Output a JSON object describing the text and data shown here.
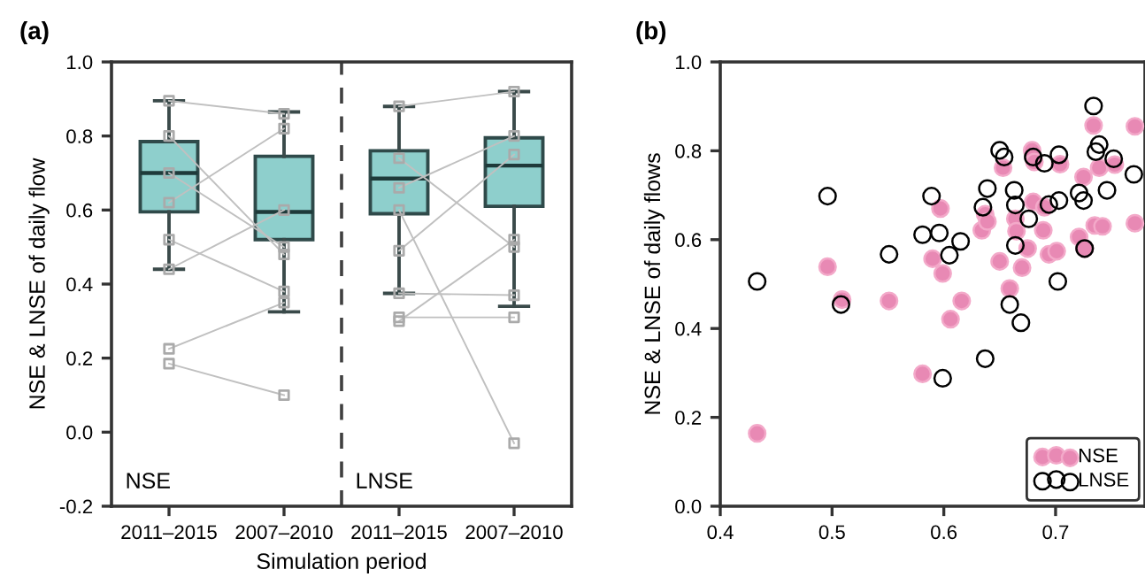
{
  "chart_data": [
    {
      "type": "box",
      "title": "(a)",
      "xlabel": "Simulation period",
      "ylabel": "NSE & LNSE of daily flow",
      "categories": [
        "2011–2015",
        "2007–2010",
        "2011–2015",
        "2007–2010"
      ],
      "color": "#8ecfcc",
      "boxes": [
        {
          "low": 0.44,
          "q1": 0.595,
          "median": 0.7,
          "q3": 0.785,
          "high": 0.895
        },
        {
          "low": 0.325,
          "q1": 0.52,
          "median": 0.595,
          "q3": 0.745,
          "high": 0.865
        },
        {
          "low": 0.375,
          "q1": 0.59,
          "median": 0.685,
          "q3": 0.76,
          "high": 0.88
        },
        {
          "low": 0.34,
          "q1": 0.61,
          "median": 0.72,
          "q3": 0.795,
          "high": 0.92
        }
      ],
      "series": [
        {
          "type": "line",
          "color": "#c0c0c0",
          "values": [
            0.225,
            0.35,
            null,
            null
          ]
        },
        {
          "type": "line",
          "color": "#c0c0c0",
          "values": [
            0.185,
            0.1,
            null,
            null
          ]
        },
        {
          "type": "line",
          "color": "#c0c0c0",
          "values": [
            0.895,
            0.86,
            null,
            null
          ]
        },
        {
          "type": "line",
          "color": "#c0c0c0",
          "values": [
            0.44,
            0.6,
            null,
            null
          ]
        },
        {
          "type": "line",
          "color": "#c0c0c0",
          "values": [
            0.52,
            0.38,
            null,
            null
          ]
        },
        {
          "type": "line",
          "color": "#c0c0c0",
          "values": [
            0.8,
            0.48,
            null,
            null
          ]
        },
        {
          "type": "line",
          "color": "#c0c0c0",
          "values": [
            0.62,
            0.82,
            null,
            null
          ]
        },
        {
          "type": "line",
          "color": "#c0c0c0",
          "values": [
            0.7,
            0.5,
            null,
            null
          ]
        },
        {
          "type": "line",
          "color": "#c0c0c0",
          "values": [
            null,
            null,
            0.6,
            -0.03
          ]
        },
        {
          "type": "line",
          "color": "#c0c0c0",
          "values": [
            null,
            null,
            0.31,
            0.31
          ]
        },
        {
          "type": "line",
          "color": "#c0c0c0",
          "values": [
            null,
            null,
            0.3,
            0.52
          ]
        },
        {
          "type": "line",
          "color": "#c0c0c0",
          "values": [
            null,
            null,
            0.88,
            0.92
          ]
        },
        {
          "type": "line",
          "color": "#c0c0c0",
          "values": [
            null,
            null,
            0.375,
            0.37
          ]
        },
        {
          "type": "line",
          "color": "#c0c0c0",
          "values": [
            null,
            null,
            0.49,
            0.75
          ]
        },
        {
          "type": "line",
          "color": "#c0c0c0",
          "values": [
            null,
            null,
            0.74,
            0.5
          ]
        },
        {
          "type": "line",
          "color": "#c0c0c0",
          "values": [
            null,
            null,
            0.66,
            0.8
          ]
        }
      ],
      "marker": "square",
      "ylim": [
        -0.2,
        1.0
      ],
      "yticks": [
        {
          "value": -0.2,
          "label": "-0.2"
        },
        {
          "value": 0.0,
          "label": "0.0"
        },
        0.2,
        0.4,
        0.6,
        0.8,
        {
          "value": 1.0,
          "label": "1.0"
        }
      ],
      "annotations": [
        "NSE",
        "LNSE"
      ],
      "grid": false
    },
    {
      "type": "scatter",
      "title": "(b)",
      "ylabel": "NSE & LNSE of daily flows",
      "series": [
        {
          "name": "NSE",
          "color": "#e889b4",
          "x": [
            0.433,
            0.496,
            0.509,
            0.551,
            0.581,
            0.59,
            0.597,
            0.599,
            0.606,
            0.616,
            0.634,
            0.637,
            0.639,
            0.65,
            0.653,
            0.659,
            0.664,
            0.665,
            0.67,
            0.675,
            0.679,
            0.68,
            0.681,
            0.689,
            0.69,
            0.694,
            0.701,
            0.704,
            0.721,
            0.725,
            0.726,
            0.734,
            0.735,
            0.739,
            0.742,
            0.753,
            0.771,
            0.771
          ],
          "values": [
            0.164,
            0.539,
            0.465,
            0.462,
            0.298,
            0.557,
            0.67,
            0.524,
            0.421,
            0.462,
            0.621,
            0.657,
            0.641,
            0.551,
            0.762,
            0.49,
            0.647,
            0.619,
            0.537,
            0.58,
            0.801,
            0.685,
            0.775,
            0.621,
            0.673,
            0.567,
            0.574,
            0.77,
            0.606,
            0.741,
            0.58,
            0.857,
            0.632,
            0.762,
            0.63,
            0.769,
            0.855,
            0.637
          ]
        },
        {
          "name": "LNSE",
          "color": "#000000",
          "x": [
            0.433,
            0.496,
            0.508,
            0.551,
            0.581,
            0.589,
            0.596,
            0.599,
            0.605,
            0.615,
            0.635,
            0.637,
            0.639,
            0.65,
            0.654,
            0.659,
            0.663,
            0.664,
            0.664,
            0.669,
            0.676,
            0.68,
            0.69,
            0.694,
            0.703,
            0.702,
            0.703,
            0.721,
            0.725,
            0.726,
            0.734,
            0.736,
            0.739,
            0.746,
            0.752,
            0.77
          ],
          "values": [
            0.506,
            0.698,
            0.454,
            0.567,
            0.611,
            0.698,
            0.615,
            0.288,
            0.565,
            0.596,
            0.673,
            0.332,
            0.715,
            0.801,
            0.786,
            0.454,
            0.711,
            0.678,
            0.587,
            0.413,
            0.647,
            0.786,
            0.772,
            0.679,
            0.791,
            0.506,
            0.688,
            0.705,
            0.688,
            0.58,
            0.901,
            0.798,
            0.814,
            0.711,
            0.782,
            0.747
          ]
        }
      ],
      "marker": "circle",
      "xlim": [
        0.4,
        0.78
      ],
      "xticks": [
        0.4,
        0.5,
        0.6,
        0.7
      ],
      "ylim": [
        0.0,
        1.0
      ],
      "yticks": [
        {
          "value": 0.0,
          "label": "0.0"
        },
        0.2,
        0.4,
        0.6,
        0.8,
        {
          "value": 1.0,
          "label": "1.0"
        }
      ],
      "grid": false,
      "legend": "bottom right"
    }
  ]
}
